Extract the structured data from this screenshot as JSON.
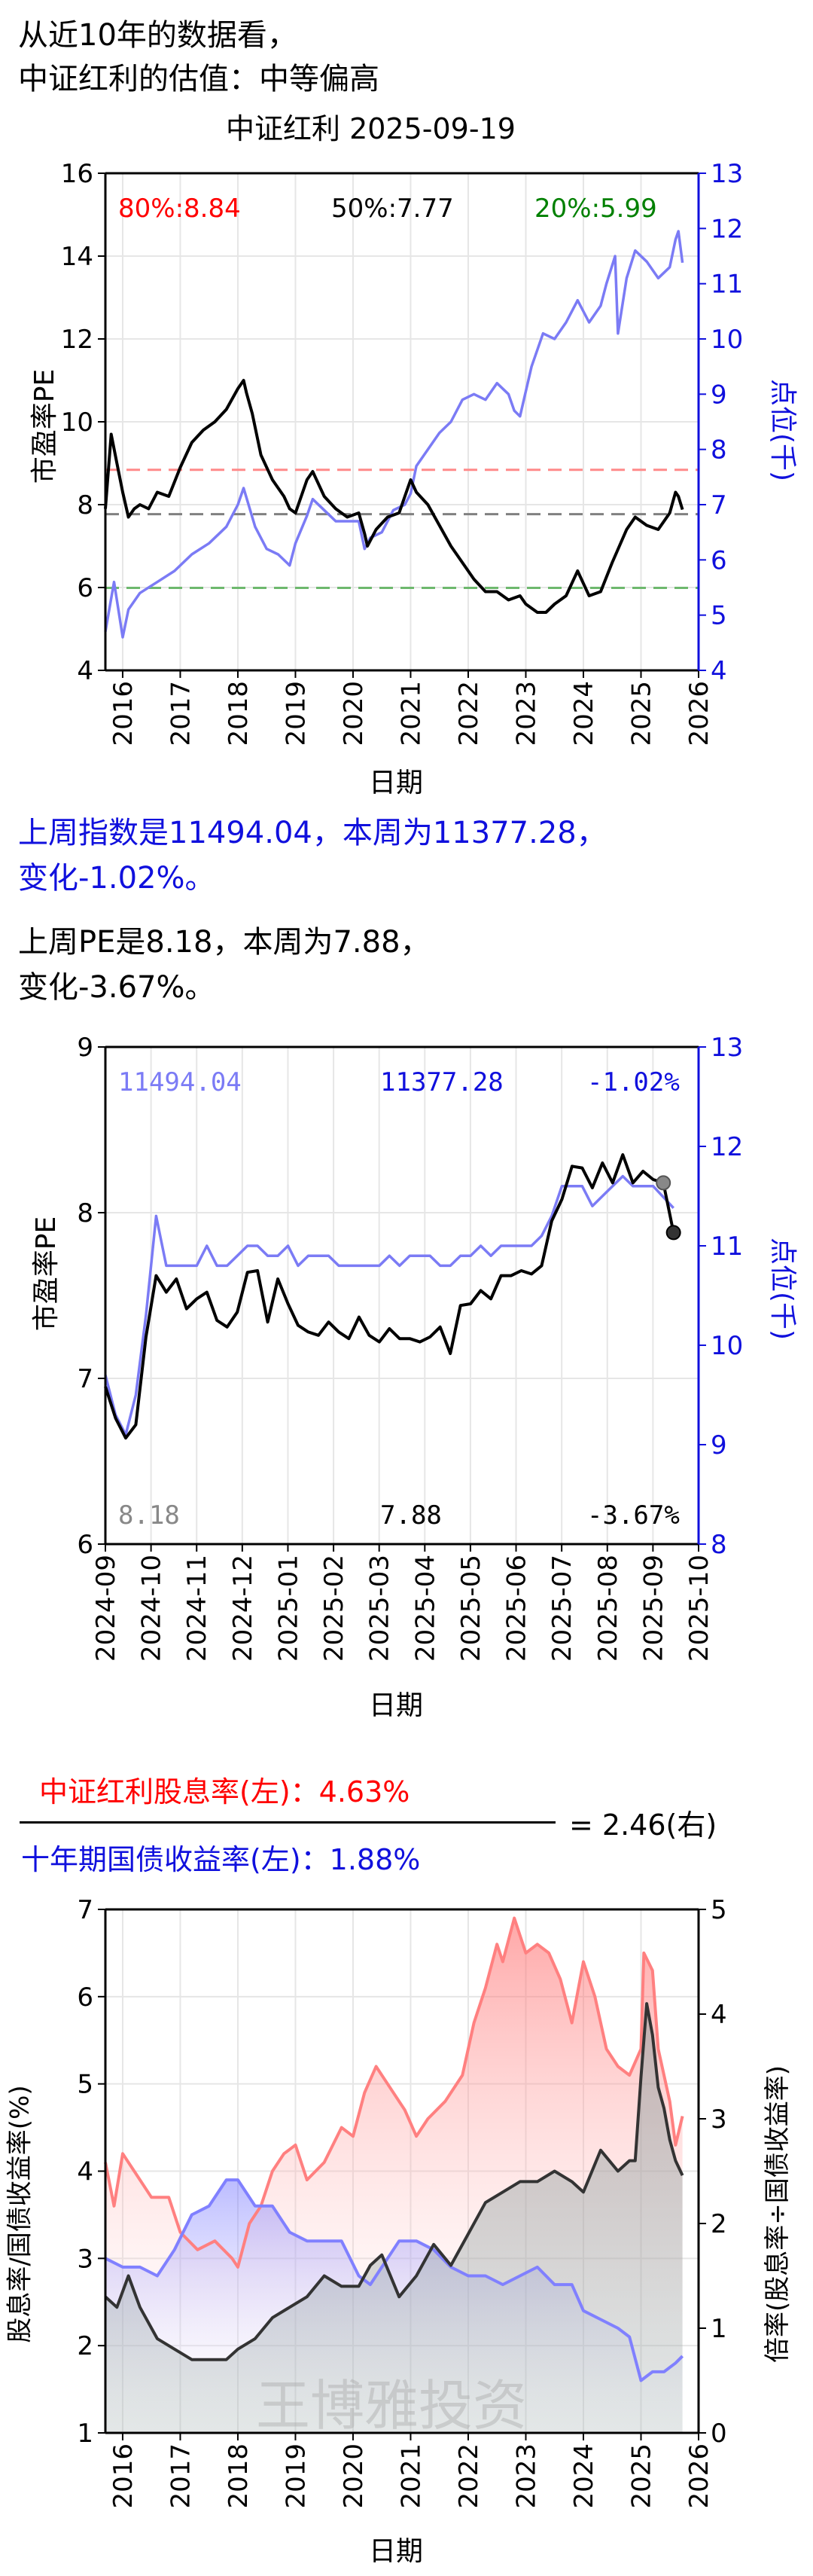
{
  "header": {
    "line1": "从近10年的数据看，",
    "line2": "中证红利的估值：中等偏高"
  },
  "colors": {
    "pe": "#000000",
    "index": "#7b7bf5",
    "axis_right": "#1010dd",
    "p80": "#ff0000",
    "p50": "#000000",
    "p20": "#008000",
    "p80_line": "#ff8a8a",
    "p20_line": "#6db86d",
    "p50_line": "#808080",
    "div": "#ff8080",
    "bond": "#8080ff",
    "ratio": "#333333",
    "weekly_prev": "#888888",
    "footer_blue": "#1010dd"
  },
  "chart1_text": {
    "title": "中证红利 2025-09-19",
    "p80": "80%:8.84",
    "p50": "50%:7.77",
    "p20": "20%:5.99"
  },
  "summary": {
    "index_line1": "上周指数是11494.04，本周为11377.28，",
    "index_line2": "变化-1.02%。",
    "pe_line1": "上周PE是8.18，本周为7.88，",
    "pe_line2": "变化-3.67%。"
  },
  "chart2_text": {
    "prev_idx": "11494.04",
    "cur_idx": "11377.28",
    "chg_idx": "-1.02%",
    "prev_pe": "8.18",
    "cur_pe": "7.88",
    "chg_pe": "-3.67%"
  },
  "formula": {
    "numerator": "中证红利股息率(左)：4.63%",
    "denominator": "十年期国债收益率(左)：1.88%",
    "result": "= 2.46(右)"
  },
  "watermark": "王博雅投资",
  "chart_data": [
    {
      "type": "line",
      "title": "中证红利 2025-09-19",
      "xlabel": "日期",
      "ylabel": "市盈率PE",
      "ylabel_right": "点位(千)",
      "xlim": [
        2015.7,
        2026
      ],
      "ylim": [
        4,
        16
      ],
      "ylim_right": [
        4,
        13
      ],
      "x_ticks": [
        "2016",
        "2017",
        "2018",
        "2019",
        "2020",
        "2021",
        "2022",
        "2023",
        "2024",
        "2025",
        "2026"
      ],
      "y_ticks": [
        4,
        6,
        8,
        10,
        12,
        14,
        16
      ],
      "y_ticks_right": [
        4,
        5,
        6,
        7,
        8,
        9,
        10,
        11,
        12,
        13
      ],
      "grid": true,
      "hlines": [
        {
          "name": "80%",
          "value": 8.84
        },
        {
          "name": "50%",
          "value": 7.77
        },
        {
          "name": "20%",
          "value": 5.99
        }
      ],
      "series": [
        {
          "axis": "left",
          "color": "#000000",
          "x": [
            2015.7,
            2015.8,
            2015.9,
            2016.0,
            2016.1,
            2016.2,
            2016.3,
            2016.45,
            2016.6,
            2016.8,
            2017.0,
            2017.2,
            2017.4,
            2017.6,
            2017.8,
            2018.0,
            2018.1,
            2018.15,
            2018.25,
            2018.4,
            2018.6,
            2018.8,
            2018.9,
            2019.0,
            2019.2,
            2019.3,
            2019.5,
            2019.7,
            2019.9,
            2020.1,
            2020.2,
            2020.25,
            2020.4,
            2020.6,
            2020.8,
            2020.9,
            2021.0,
            2021.1,
            2021.3,
            2021.5,
            2021.7,
            2021.9,
            2022.1,
            2022.3,
            2022.5,
            2022.7,
            2022.9,
            2023.0,
            2023.2,
            2023.35,
            2023.5,
            2023.7,
            2023.9,
            2024.1,
            2024.3,
            2024.5,
            2024.75,
            2024.9,
            2025.1,
            2025.3,
            2025.5,
            2025.6,
            2025.65,
            2025.72
          ],
          "y": [
            7.9,
            9.7,
            9.0,
            8.3,
            7.7,
            7.9,
            8.0,
            7.9,
            8.3,
            8.2,
            8.9,
            9.5,
            9.8,
            10.0,
            10.3,
            10.8,
            11.0,
            10.7,
            10.2,
            9.2,
            8.6,
            8.2,
            7.9,
            7.8,
            8.6,
            8.8,
            8.2,
            7.9,
            7.7,
            7.8,
            7.3,
            7.0,
            7.4,
            7.7,
            7.8,
            8.2,
            8.6,
            8.3,
            8.0,
            7.5,
            7.0,
            6.6,
            6.2,
            5.9,
            5.9,
            5.7,
            5.8,
            5.6,
            5.4,
            5.4,
            5.6,
            5.8,
            6.4,
            5.8,
            5.9,
            6.6,
            7.4,
            7.7,
            7.5,
            7.4,
            7.8,
            8.3,
            8.2,
            7.88
          ]
        },
        {
          "axis": "right",
          "color": "#7b7bf5",
          "x": [
            2015.7,
            2015.85,
            2016.0,
            2016.1,
            2016.3,
            2016.6,
            2016.9,
            2017.2,
            2017.5,
            2017.8,
            2018.0,
            2018.1,
            2018.3,
            2018.5,
            2018.7,
            2018.9,
            2019.0,
            2019.2,
            2019.3,
            2019.5,
            2019.7,
            2019.9,
            2020.1,
            2020.2,
            2020.3,
            2020.5,
            2020.7,
            2020.9,
            2021.0,
            2021.1,
            2021.3,
            2021.5,
            2021.7,
            2021.9,
            2022.1,
            2022.3,
            2022.5,
            2022.7,
            2022.8,
            2022.9,
            2023.1,
            2023.3,
            2023.5,
            2023.7,
            2023.9,
            2024.1,
            2024.3,
            2024.4,
            2024.55,
            2024.6,
            2024.75,
            2024.9,
            2025.1,
            2025.3,
            2025.5,
            2025.6,
            2025.65,
            2025.72
          ],
          "y": [
            4.7,
            5.6,
            4.6,
            5.1,
            5.4,
            5.6,
            5.8,
            6.1,
            6.3,
            6.6,
            7.0,
            7.3,
            6.6,
            6.2,
            6.1,
            5.9,
            6.3,
            6.8,
            7.1,
            6.9,
            6.7,
            6.7,
            6.7,
            6.2,
            6.4,
            6.5,
            6.9,
            7.0,
            7.2,
            7.7,
            8.0,
            8.3,
            8.5,
            8.9,
            9.0,
            8.9,
            9.2,
            9.0,
            8.7,
            8.6,
            9.5,
            10.1,
            10.0,
            10.3,
            10.7,
            10.3,
            10.6,
            11.0,
            11.5,
            10.1,
            11.1,
            11.6,
            11.4,
            11.1,
            11.3,
            11.8,
            11.95,
            11.38
          ]
        }
      ]
    },
    {
      "type": "line",
      "xlabel": "日期",
      "ylabel": "市盈率PE",
      "ylabel_right": "点位(千)",
      "xlim": [
        2024.67,
        2025.75
      ],
      "ylim": [
        6,
        9
      ],
      "ylim_right": [
        8,
        13
      ],
      "x_ticks": [
        "2024-09",
        "2024-10",
        "2024-11",
        "2024-12",
        "2025-01",
        "2025-02",
        "2025-03",
        "2025-04",
        "2025-05",
        "2025-06",
        "2025-07",
        "2025-08",
        "2025-09",
        "2025-10"
      ],
      "y_ticks": [
        6,
        7,
        8,
        9
      ],
      "y_ticks_right": [
        8,
        9,
        10,
        11,
        12,
        13
      ],
      "grid": true,
      "series": [
        {
          "axis": "left",
          "color": "#000000",
          "y": [
            6.95,
            6.76,
            6.64,
            6.72,
            7.25,
            7.62,
            7.52,
            7.6,
            7.42,
            7.48,
            7.52,
            7.35,
            7.31,
            7.4,
            7.64,
            7.65,
            7.34,
            7.6,
            7.45,
            7.32,
            7.28,
            7.26,
            7.34,
            7.28,
            7.24,
            7.37,
            7.26,
            7.22,
            7.3,
            7.24,
            7.24,
            7.22,
            7.25,
            7.31,
            7.15,
            7.44,
            7.45,
            7.53,
            7.48,
            7.62,
            7.62,
            7.65,
            7.63,
            7.68,
            7.95,
            8.08,
            8.28,
            8.27,
            8.15,
            8.3,
            8.18,
            8.35,
            8.18,
            8.25,
            8.2,
            8.18,
            7.88
          ]
        },
        {
          "axis": "right",
          "color": "#7b7bf5",
          "y": [
            9.7,
            9.3,
            9.1,
            9.5,
            10.3,
            11.3,
            10.8,
            10.8,
            10.8,
            10.8,
            11.0,
            10.8,
            10.8,
            10.9,
            11.0,
            11.0,
            10.9,
            10.9,
            11.0,
            10.8,
            10.9,
            10.9,
            10.9,
            10.8,
            10.8,
            10.8,
            10.8,
            10.8,
            10.9,
            10.8,
            10.9,
            10.9,
            10.9,
            10.8,
            10.8,
            10.9,
            10.9,
            11.0,
            10.9,
            11.0,
            11.0,
            11.0,
            11.0,
            11.1,
            11.3,
            11.6,
            11.6,
            11.6,
            11.4,
            11.5,
            11.6,
            11.7,
            11.6,
            11.6,
            11.6,
            11.49,
            11.38
          ]
        }
      ]
    },
    {
      "type": "area",
      "xlabel": "日期",
      "ylabel": "股息率/国债收益率(%)",
      "ylabel_right": "倍率(股息率÷国债收益率)",
      "xlim": [
        2015.7,
        2026
      ],
      "ylim": [
        1,
        7
      ],
      "ylim_right": [
        0,
        5
      ],
      "x_ticks": [
        "2016",
        "2017",
        "2018",
        "2019",
        "2020",
        "2021",
        "2022",
        "2023",
        "2024",
        "2025",
        "2026"
      ],
      "y_ticks": [
        1,
        2,
        3,
        4,
        5,
        6,
        7
      ],
      "y_ticks_right": [
        0,
        1,
        2,
        3,
        4,
        5
      ],
      "grid": true,
      "series": [
        {
          "axis": "left",
          "color": "#ff8080",
          "x": [
            2015.7,
            2015.85,
            2016.0,
            2016.2,
            2016.5,
            2016.8,
            2017.0,
            2017.3,
            2017.6,
            2017.9,
            2018.0,
            2018.2,
            2018.4,
            2018.6,
            2018.8,
            2019.0,
            2019.2,
            2019.5,
            2019.8,
            2020.0,
            2020.2,
            2020.4,
            2020.6,
            2020.9,
            2021.1,
            2021.3,
            2021.6,
            2021.9,
            2022.1,
            2022.3,
            2022.5,
            2022.6,
            2022.8,
            2023.0,
            2023.2,
            2023.4,
            2023.6,
            2023.8,
            2024.0,
            2024.2,
            2024.4,
            2024.6,
            2024.8,
            2025.0,
            2025.05,
            2025.2,
            2025.3,
            2025.5,
            2025.6,
            2025.72
          ],
          "y": [
            4.1,
            3.6,
            4.2,
            4.0,
            3.7,
            3.7,
            3.3,
            3.1,
            3.2,
            3.0,
            2.9,
            3.4,
            3.6,
            4.0,
            4.2,
            4.3,
            3.9,
            4.1,
            4.5,
            4.4,
            4.9,
            5.2,
            5.0,
            4.7,
            4.4,
            4.6,
            4.8,
            5.1,
            5.7,
            6.1,
            6.6,
            6.4,
            6.9,
            6.5,
            6.6,
            6.5,
            6.2,
            5.7,
            6.4,
            6.0,
            5.4,
            5.2,
            5.1,
            5.4,
            6.5,
            6.3,
            5.4,
            4.8,
            4.3,
            4.63
          ]
        },
        {
          "axis": "left",
          "color": "#8080ff",
          "x": [
            2015.7,
            2016.0,
            2016.3,
            2016.6,
            2016.9,
            2017.2,
            2017.5,
            2017.8,
            2018.0,
            2018.3,
            2018.6,
            2018.9,
            2019.2,
            2019.5,
            2019.8,
            2020.1,
            2020.3,
            2020.5,
            2020.8,
            2021.1,
            2021.4,
            2021.7,
            2022.0,
            2022.3,
            2022.6,
            2022.9,
            2023.2,
            2023.5,
            2023.8,
            2024.0,
            2024.3,
            2024.6,
            2024.8,
            2025.0,
            2025.2,
            2025.4,
            2025.6,
            2025.72
          ],
          "y": [
            3.0,
            2.9,
            2.9,
            2.8,
            3.1,
            3.5,
            3.6,
            3.9,
            3.9,
            3.6,
            3.6,
            3.3,
            3.2,
            3.2,
            3.2,
            2.8,
            2.7,
            2.9,
            3.2,
            3.2,
            3.1,
            2.9,
            2.8,
            2.8,
            2.7,
            2.8,
            2.9,
            2.7,
            2.7,
            2.4,
            2.3,
            2.2,
            2.1,
            1.6,
            1.7,
            1.7,
            1.8,
            1.88
          ]
        },
        {
          "axis": "right",
          "color": "#333333",
          "x": [
            2015.7,
            2015.9,
            2016.1,
            2016.3,
            2016.6,
            2016.9,
            2017.2,
            2017.5,
            2017.8,
            2018.0,
            2018.3,
            2018.6,
            2018.9,
            2019.2,
            2019.5,
            2019.8,
            2020.1,
            2020.3,
            2020.5,
            2020.8,
            2021.1,
            2021.4,
            2021.7,
            2022.0,
            2022.3,
            2022.6,
            2022.9,
            2023.2,
            2023.5,
            2023.8,
            2024.0,
            2024.3,
            2024.6,
            2024.8,
            2024.9,
            2025.0,
            2025.1,
            2025.2,
            2025.3,
            2025.4,
            2025.5,
            2025.6,
            2025.72
          ],
          "y": [
            1.3,
            1.2,
            1.5,
            1.2,
            0.9,
            0.8,
            0.7,
            0.7,
            0.7,
            0.8,
            0.9,
            1.1,
            1.2,
            1.3,
            1.5,
            1.4,
            1.4,
            1.6,
            1.7,
            1.3,
            1.5,
            1.8,
            1.6,
            1.9,
            2.2,
            2.3,
            2.4,
            2.4,
            2.5,
            2.4,
            2.3,
            2.7,
            2.5,
            2.6,
            2.6,
            3.4,
            4.1,
            3.8,
            3.3,
            3.1,
            2.8,
            2.6,
            2.46
          ]
        }
      ]
    }
  ]
}
